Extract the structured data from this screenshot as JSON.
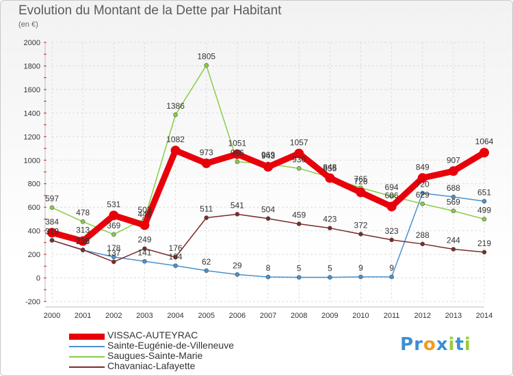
{
  "title": "Evolution du Montant de la Dette par Habitant",
  "unit_label": "(en €)",
  "logo": {
    "text": "Proxiti",
    "letters": [
      {
        "ch": "P",
        "color": "#3b8fd4"
      },
      {
        "ch": "r",
        "color": "#3b8fd4"
      },
      {
        "ch": "o",
        "color": "#f39a1e"
      },
      {
        "ch": "x",
        "color": "#3b8fd4"
      },
      {
        "ch": "i",
        "color": "#9acb3c"
      },
      {
        "ch": "t",
        "color": "#3b8fd4"
      },
      {
        "ch": "i",
        "color": "#9acb3c"
      }
    ]
  },
  "chart_data": {
    "type": "line",
    "title": "Evolution du Montant de la Dette par Habitant",
    "subtitle": "(en €)",
    "xlabel": "",
    "ylabel": "",
    "x": [
      "2000",
      "2001",
      "2002",
      "2003",
      "2004",
      "2005",
      "2006",
      "2007",
      "2008",
      "2009",
      "2010",
      "2011",
      "2012",
      "2013",
      "2014"
    ],
    "ylim": [
      -200,
      2000
    ],
    "yticks": [
      "-200",
      "0",
      "200",
      "400",
      "600",
      "800",
      "1000",
      "1200",
      "1400",
      "1600",
      "1800",
      "2000"
    ],
    "grid": true,
    "legend_position": "bottom-left",
    "series": [
      {
        "name": "VISSAC-AUTEYRAC",
        "color": "#e8000b",
        "values": [
          384,
          313,
          531,
          448,
          1082,
          973,
          1051,
          943,
          1057,
          848,
          726,
          606,
          849,
          907,
          1064
        ]
      },
      {
        "name": "Sainte-Eugénie-de-Villeneuve",
        "color": "#4a90c8",
        "values": [
          319,
          236,
          178,
          141,
          104,
          62,
          29,
          8,
          5,
          5,
          9,
          9,
          720,
          688,
          651
        ]
      },
      {
        "name": "Saugues-Sainte-Marie",
        "color": "#88cc44",
        "values": [
          597,
          478,
          369,
          503,
          1386,
          1805,
          986,
          969,
          930,
          855,
          765,
          694,
          629,
          569,
          499
        ]
      },
      {
        "name": "Chavaniac-Lafayette",
        "color": "#7a2a2a",
        "values": [
          319,
          239,
          137,
          249,
          176,
          511,
          541,
          504,
          459,
          423,
          372,
          323,
          288,
          244,
          219
        ]
      }
    ]
  }
}
